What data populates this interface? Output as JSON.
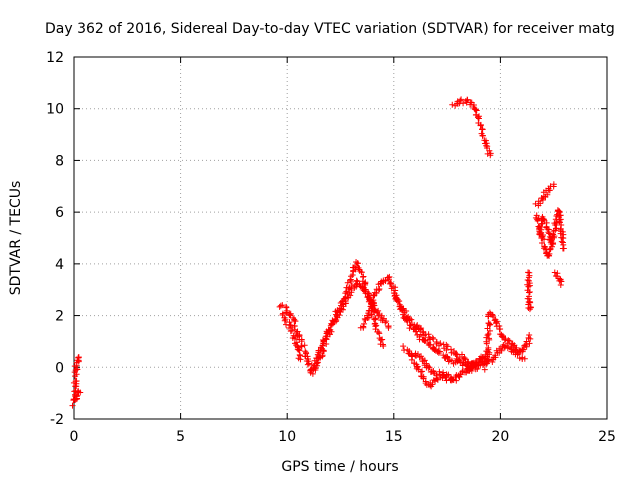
{
  "chart_data": {
    "type": "scatter",
    "title": "Day 362 of 2016, Sidereal Day-to-day VTEC variation (SDTVAR) for receiver matg",
    "xlabel": "GPS time / hours",
    "ylabel": "SDTVAR / TECUs",
    "xlim": [
      0,
      25
    ],
    "ylim": [
      -2,
      12
    ],
    "xticks": [
      0,
      5,
      10,
      15,
      20,
      25
    ],
    "yticks": [
      -2,
      0,
      2,
      4,
      6,
      8,
      10,
      12
    ],
    "x_tick_labels": [
      "0",
      "5",
      "10",
      "15",
      "20",
      "25"
    ],
    "y_tick_labels": [
      "-2",
      "0",
      "2",
      "4",
      "6",
      "8",
      "10",
      "12"
    ],
    "grid": true,
    "marker": "+",
    "series": [
      {
        "name": "SDTVAR",
        "color": "#ff0000",
        "tracks": [
          [
            [
              0.0,
              -1.4
            ],
            [
              0.05,
              -0.6
            ],
            [
              0.1,
              0.0
            ],
            [
              0.2,
              0.3
            ],
            [
              0.25,
              0.4
            ]
          ],
          [
            [
              0.05,
              -1.3
            ],
            [
              0.15,
              -1.0
            ],
            [
              0.25,
              -0.9
            ]
          ],
          [
            [
              9.7,
              2.4
            ],
            [
              10.0,
              2.2
            ],
            [
              10.3,
              1.8
            ],
            [
              10.6,
              1.2
            ],
            [
              10.9,
              0.4
            ],
            [
              11.1,
              -0.2
            ],
            [
              11.3,
              -0.1
            ],
            [
              11.6,
              0.5
            ],
            [
              12.0,
              1.4
            ],
            [
              12.4,
              2.2
            ],
            [
              12.8,
              3.0
            ],
            [
              13.1,
              3.8
            ],
            [
              13.3,
              4.0
            ],
            [
              13.6,
              3.3
            ],
            [
              13.9,
              2.4
            ],
            [
              14.2,
              1.5
            ],
            [
              14.5,
              0.8
            ]
          ],
          [
            [
              9.8,
              2.0
            ],
            [
              10.1,
              1.6
            ],
            [
              10.4,
              1.0
            ],
            [
              10.6,
              0.3
            ]
          ],
          [
            [
              11.2,
              0.0
            ],
            [
              11.5,
              0.6
            ],
            [
              11.9,
              1.3
            ],
            [
              12.3,
              1.9
            ],
            [
              12.7,
              2.5
            ],
            [
              13.0,
              3.0
            ],
            [
              13.3,
              3.3
            ],
            [
              13.6,
              3.0
            ],
            [
              13.9,
              2.6
            ],
            [
              14.2,
              2.1
            ],
            [
              14.5,
              1.8
            ],
            [
              14.8,
              1.6
            ]
          ],
          [
            [
              13.5,
              1.5
            ],
            [
              13.8,
              2.0
            ],
            [
              14.1,
              2.7
            ],
            [
              14.4,
              3.3
            ],
            [
              14.7,
              3.5
            ],
            [
              15.0,
              3.0
            ],
            [
              15.3,
              2.4
            ],
            [
              15.6,
              1.8
            ],
            [
              15.9,
              1.5
            ],
            [
              16.2,
              1.2
            ],
            [
              16.5,
              1.0
            ],
            [
              16.8,
              0.8
            ],
            [
              17.1,
              0.6
            ],
            [
              17.4,
              0.4
            ],
            [
              17.7,
              0.2
            ],
            [
              18.0,
              0.3
            ],
            [
              18.3,
              0.1
            ],
            [
              18.6,
              0.0
            ],
            [
              18.9,
              0.2
            ],
            [
              19.2,
              0.4
            ],
            [
              19.5,
              0.5
            ]
          ],
          [
            [
              15.0,
              2.8
            ],
            [
              15.4,
              2.2
            ],
            [
              15.8,
              1.8
            ],
            [
              16.2,
              1.5
            ],
            [
              16.6,
              1.2
            ],
            [
              17.0,
              1.0
            ],
            [
              17.4,
              0.8
            ],
            [
              17.8,
              0.6
            ],
            [
              18.2,
              0.4
            ],
            [
              18.6,
              0.2
            ],
            [
              19.0,
              0.1
            ],
            [
              19.4,
              0.2
            ]
          ],
          [
            [
              15.5,
              0.8
            ],
            [
              15.8,
              0.4
            ],
            [
              16.1,
              0.0
            ],
            [
              16.4,
              -0.4
            ],
            [
              16.7,
              -0.7
            ],
            [
              17.0,
              -0.5
            ],
            [
              17.4,
              -0.3
            ],
            [
              17.8,
              -0.4
            ],
            [
              18.2,
              -0.2
            ],
            [
              18.6,
              0.0
            ],
            [
              19.0,
              0.2
            ],
            [
              19.4,
              0.3
            ]
          ],
          [
            [
              16.0,
              0.6
            ],
            [
              16.3,
              0.3
            ],
            [
              16.6,
              0.0
            ],
            [
              16.9,
              -0.2
            ],
            [
              17.3,
              -0.3
            ],
            [
              17.7,
              -0.5
            ],
            [
              18.1,
              -0.3
            ],
            [
              18.5,
              -0.1
            ],
            [
              18.9,
              0.0
            ],
            [
              19.3,
              0.1
            ]
          ],
          [
            [
              19.3,
              0.0
            ],
            [
              19.5,
              2.1
            ],
            [
              19.8,
              1.8
            ],
            [
              20.1,
              1.2
            ],
            [
              20.4,
              1.0
            ],
            [
              20.7,
              0.8
            ],
            [
              21.0,
              0.6
            ],
            [
              21.2,
              0.8
            ],
            [
              21.4,
              1.2
            ]
          ],
          [
            [
              19.6,
              0.2
            ],
            [
              19.9,
              0.6
            ],
            [
              20.2,
              0.9
            ],
            [
              20.5,
              0.7
            ],
            [
              20.8,
              0.5
            ],
            [
              21.1,
              0.3
            ]
          ],
          [
            [
              17.8,
              10.1
            ],
            [
              18.1,
              10.3
            ],
            [
              18.4,
              10.3
            ],
            [
              18.7,
              10.2
            ],
            [
              18.9,
              9.8
            ],
            [
              19.1,
              9.3
            ],
            [
              19.3,
              8.7
            ],
            [
              19.5,
              8.2
            ]
          ],
          [
            [
              21.3,
              3.7
            ],
            [
              21.35,
              2.3
            ],
            [
              21.4,
              2.6
            ]
          ],
          [
            [
              21.7,
              6.3
            ],
            [
              22.0,
              6.6
            ],
            [
              22.3,
              6.9
            ],
            [
              22.5,
              7.0
            ]
          ],
          [
            [
              21.7,
              5.9
            ],
            [
              21.85,
              5.3
            ],
            [
              22.0,
              4.9
            ],
            [
              22.15,
              4.4
            ],
            [
              22.3,
              4.3
            ],
            [
              22.45,
              5.0
            ],
            [
              22.6,
              5.6
            ],
            [
              22.7,
              6.1
            ],
            [
              22.8,
              5.8
            ],
            [
              22.9,
              5.0
            ],
            [
              23.0,
              4.6
            ]
          ],
          [
            [
              21.8,
              5.2
            ],
            [
              22.0,
              5.8
            ],
            [
              22.15,
              5.5
            ],
            [
              22.3,
              5.0
            ],
            [
              22.45,
              4.7
            ]
          ],
          [
            [
              22.6,
              3.6
            ],
            [
              22.75,
              3.4
            ],
            [
              22.9,
              3.2
            ]
          ]
        ]
      }
    ]
  }
}
